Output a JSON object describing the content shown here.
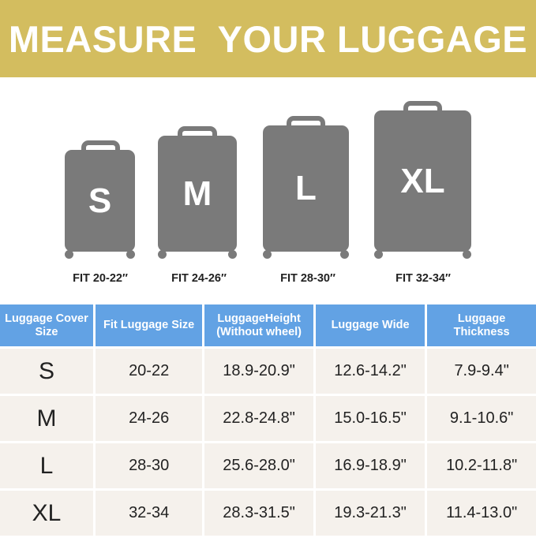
{
  "title": "MEASURE  YOUR LUGGAGE",
  "suitcases": [
    {
      "label": "S",
      "fit": "FIT 20-22″"
    },
    {
      "label": "M",
      "fit": "FIT 24-26″"
    },
    {
      "label": "L",
      "fit": "FIT 28-30″"
    },
    {
      "label": "XL",
      "fit": "FIT 32-34″"
    }
  ],
  "colors": {
    "banner": "#d3bd5f",
    "header": "#62a2e4",
    "row": "#f5f1ec",
    "suitcase": "#7a7a7a"
  },
  "table": {
    "headers": [
      "Luggage Cover Size",
      "Fit Luggage Size",
      "LuggageHeight (Without wheel)",
      "Luggage Wide",
      "Luggage Thickness"
    ],
    "rows": [
      [
        "S",
        "20-22",
        "18.9-20.9\"",
        "12.6-14.2\"",
        "7.9-9.4\""
      ],
      [
        "M",
        "24-26",
        "22.8-24.8\"",
        "15.0-16.5\"",
        "9.1-10.6\""
      ],
      [
        "L",
        "28-30",
        "25.6-28.0\"",
        "16.9-18.9\"",
        "10.2-11.8\""
      ],
      [
        "XL",
        "32-34",
        "28.3-31.5\"",
        "19.3-21.3\"",
        "11.4-13.0\""
      ]
    ]
  }
}
